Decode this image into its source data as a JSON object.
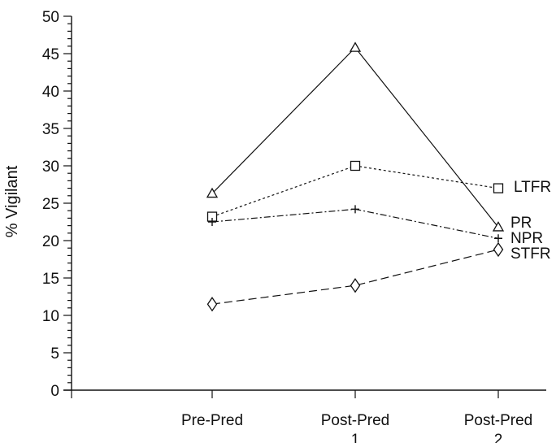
{
  "chart_data": {
    "type": "line",
    "title": "",
    "xlabel": "",
    "ylabel": "% Vigilant",
    "ylim": [
      0,
      50
    ],
    "y_ticks": [
      "0",
      "5",
      "10",
      "15",
      "20",
      "25",
      "30",
      "35",
      "40",
      "45",
      "50"
    ],
    "categories": [
      {
        "line1": "Pre-Pred",
        "line2": ""
      },
      {
        "line1": "Post-Pred",
        "line2": "1"
      },
      {
        "line1": "Post-Pred",
        "line2": "2"
      }
    ],
    "grid": false,
    "legend": "inline labels at right end of each line",
    "series": [
      {
        "name": "PR",
        "marker": "triangle",
        "dash": "solid",
        "values": [
          26.3,
          45.8,
          21.8
        ]
      },
      {
        "name": "LTFR",
        "marker": "square",
        "dash": "dotted",
        "values": [
          23.2,
          30.0,
          27.0
        ]
      },
      {
        "name": "NPR",
        "marker": "plus",
        "dash": "dashdot",
        "values": [
          22.5,
          24.2,
          20.3
        ]
      },
      {
        "name": "STFR",
        "marker": "diamond",
        "dash": "dashed",
        "values": [
          11.5,
          14.0,
          18.8
        ]
      }
    ]
  }
}
